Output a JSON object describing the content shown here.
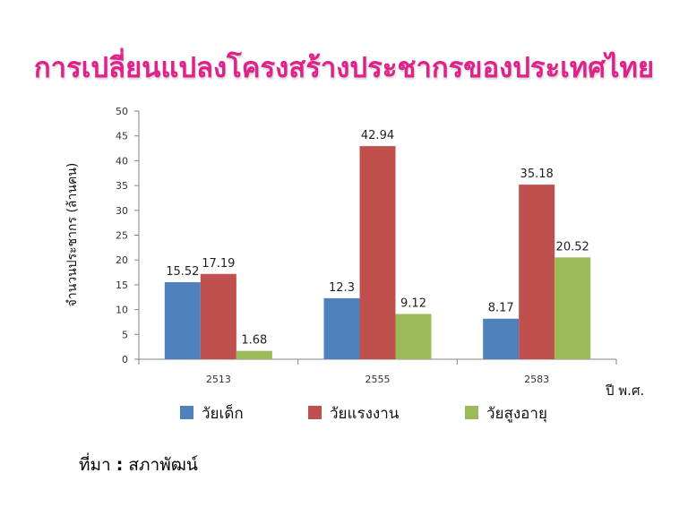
{
  "page": {
    "title": "การเปลี่ยนแปลงโครงสร้างประชากรของประเทศไทย",
    "source_label": "ที่มา",
    "source_sep": ":",
    "source_value": "สภาพัฒน์"
  },
  "colors": {
    "title": "#e0218a",
    "series": [
      "#4f81bd",
      "#c0504d",
      "#9bbb59"
    ]
  },
  "chart_data": {
    "type": "bar",
    "title": "การเปลี่ยนแปลงโครงสร้างประชากรของประเทศไทย",
    "categories": [
      "2513",
      "2555",
      "2583"
    ],
    "xlabel": "ปี พ.ศ.",
    "ylabel": "จำนวนประชากร (ล้านคน)",
    "ylim": [
      0,
      50
    ],
    "yticks": [
      0,
      5,
      10,
      15,
      20,
      25,
      30,
      35,
      40,
      45,
      50
    ],
    "legend_position": "bottom",
    "series": [
      {
        "name": "วัยเด็ก",
        "values": [
          15.52,
          12.3,
          8.17
        ],
        "labels": [
          "15.52",
          "12.3",
          "8.17"
        ]
      },
      {
        "name": "วัยแรงงาน",
        "values": [
          17.19,
          42.94,
          35.18
        ],
        "labels": [
          "17.19",
          "42.94",
          "35.18"
        ]
      },
      {
        "name": "วัยสูงอายุ",
        "values": [
          1.68,
          9.12,
          20.52
        ],
        "labels": [
          "1.68",
          "9.12",
          "20.52"
        ]
      }
    ]
  }
}
